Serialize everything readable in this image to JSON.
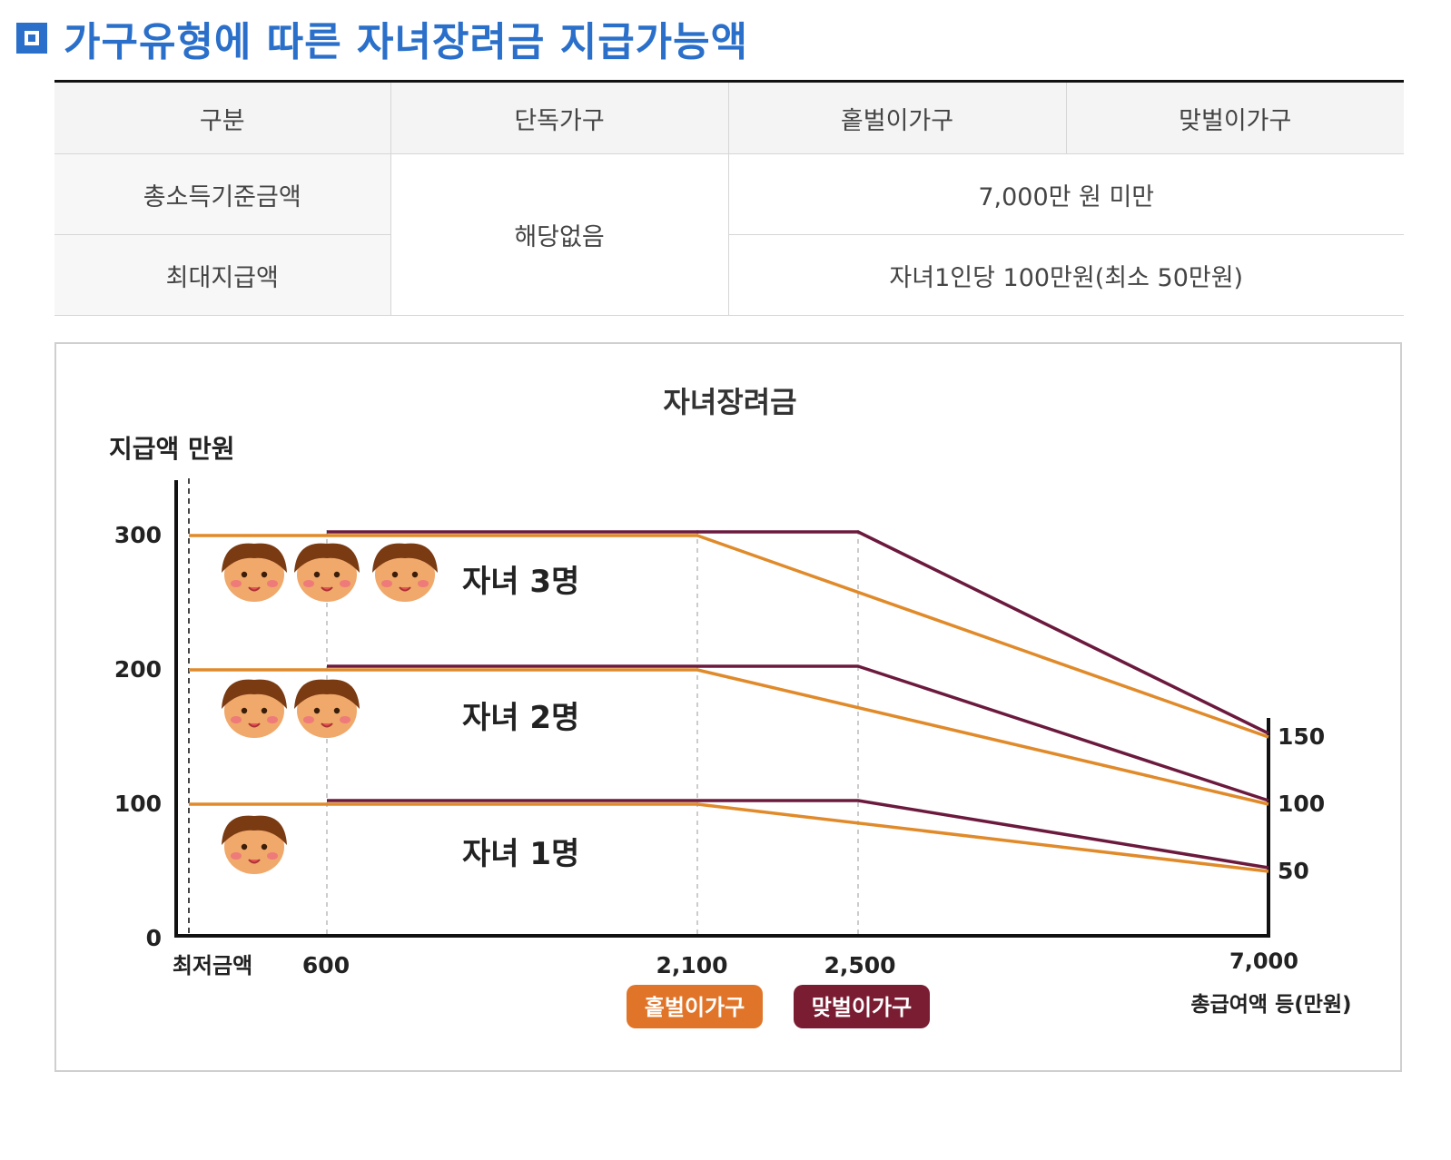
{
  "page_title": "가구유형에 따른 자녀장려금 지급가능액",
  "table": {
    "headers": [
      "구분",
      "단독가구",
      "홑벌이가구",
      "맞벌이가구"
    ],
    "rows": [
      {
        "label": "총소득기준금액",
        "single": "해당없음",
        "value": "7,000만 원 미만"
      },
      {
        "label": "최대지급액",
        "value": "자녀1인당 100만원(최소 50만원)"
      }
    ]
  },
  "chart_data": {
    "type": "line",
    "title": "자녀장려금",
    "ylabel": "지급액 만원",
    "xlabel": "총급여액 등(만원)",
    "x_tick_labels": [
      "최저금액",
      "600",
      "2,100",
      "2,500",
      "7,000"
    ],
    "y_tick_labels": [
      "0",
      "100",
      "200",
      "300"
    ],
    "right_tick_labels": [
      "150",
      "100",
      "50"
    ],
    "ylim": [
      0,
      300
    ],
    "legend": [
      "홑벌이가구",
      "맞벌이가구"
    ],
    "legend_placement": "bottom-center",
    "colors": {
      "single_earner": "#e08a2a",
      "dual_earner": "#6b1a3e",
      "legend_single_bg": "#e0752a",
      "legend_dual_bg": "#7a1d32"
    },
    "groups": [
      {
        "label": "자녀 3명",
        "children": 3
      },
      {
        "label": "자녀 2명",
        "children": 2
      },
      {
        "label": "자녀 1명",
        "children": 1
      }
    ],
    "series": [
      {
        "name": "홑벌이가구",
        "group": "자녀 3명",
        "points": [
          [
            0,
            300
          ],
          [
            2100,
            300
          ],
          [
            7000,
            150
          ]
        ]
      },
      {
        "name": "맞벌이가구",
        "group": "자녀 3명",
        "points": [
          [
            600,
            300
          ],
          [
            2500,
            300
          ],
          [
            7000,
            150
          ]
        ]
      },
      {
        "name": "홑벌이가구",
        "group": "자녀 2명",
        "points": [
          [
            0,
            200
          ],
          [
            2100,
            200
          ],
          [
            7000,
            100
          ]
        ]
      },
      {
        "name": "맞벌이가구",
        "group": "자녀 2명",
        "points": [
          [
            600,
            200
          ],
          [
            2500,
            200
          ],
          [
            7000,
            100
          ]
        ]
      },
      {
        "name": "홑벌이가구",
        "group": "자녀 1명",
        "points": [
          [
            0,
            100
          ],
          [
            2100,
            100
          ],
          [
            7000,
            50
          ]
        ]
      },
      {
        "name": "맞벌이가구",
        "group": "자녀 1명",
        "points": [
          [
            600,
            100
          ],
          [
            2500,
            100
          ],
          [
            7000,
            50
          ]
        ]
      }
    ]
  }
}
